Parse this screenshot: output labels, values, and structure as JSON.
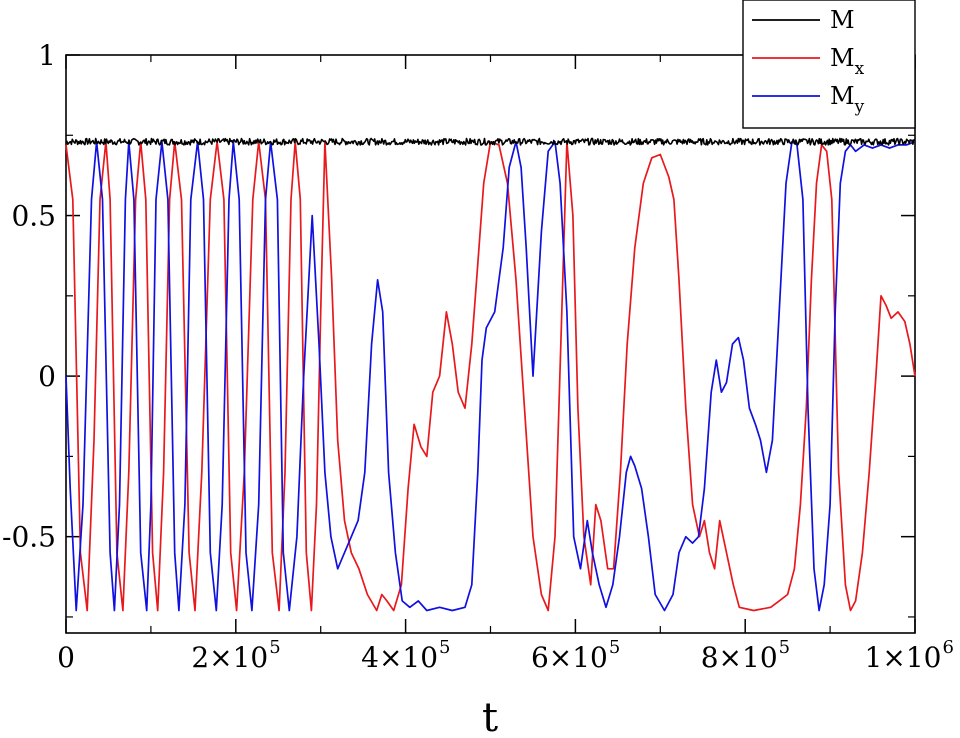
{
  "chart_data": {
    "type": "line",
    "title": "",
    "xlabel": "t",
    "ylabel": "",
    "xlim": [
      0,
      1000000
    ],
    "ylim": [
      -0.8,
      1.0
    ],
    "grid": false,
    "legend_placement": "top-right",
    "x_ticks": [
      {
        "value": 0,
        "label": "0"
      },
      {
        "value": 200000,
        "label": "2×10",
        "exp": "5"
      },
      {
        "value": 400000,
        "label": "4×10",
        "exp": "5"
      },
      {
        "value": 600000,
        "label": "6×10",
        "exp": "5"
      },
      {
        "value": 800000,
        "label": "8×10",
        "exp": "5"
      },
      {
        "value": 1000000,
        "label": "1×10",
        "exp": "6"
      }
    ],
    "y_ticks": [
      {
        "value": -0.5,
        "label": "-0.5"
      },
      {
        "value": 0,
        "label": "0"
      },
      {
        "value": 0.5,
        "label": "0.5"
      },
      {
        "value": 1,
        "label": "1"
      }
    ],
    "series": [
      {
        "name": "M",
        "sub": "",
        "color": "#000000",
        "noise": true,
        "points": [
          [
            0,
            0.73
          ],
          [
            1000000,
            0.73
          ]
        ]
      },
      {
        "name": "M",
        "sub": "x",
        "color": "#e8191d",
        "noise": false,
        "points": [
          [
            0,
            0.72
          ],
          [
            8000,
            0.55
          ],
          [
            17000,
            -0.55
          ],
          [
            25000,
            -0.73
          ],
          [
            33000,
            -0.2
          ],
          [
            40000,
            0.55
          ],
          [
            47000,
            0.73
          ],
          [
            52000,
            0.55
          ],
          [
            60000,
            -0.55
          ],
          [
            67000,
            -0.73
          ],
          [
            74000,
            -0.3
          ],
          [
            82000,
            0.55
          ],
          [
            88000,
            0.73
          ],
          [
            94000,
            0.55
          ],
          [
            102000,
            -0.55
          ],
          [
            108000,
            -0.73
          ],
          [
            115000,
            -0.3
          ],
          [
            122000,
            0.55
          ],
          [
            128000,
            0.73
          ],
          [
            136000,
            0.55
          ],
          [
            145000,
            -0.55
          ],
          [
            152000,
            -0.73
          ],
          [
            160000,
            -0.3
          ],
          [
            170000,
            0.55
          ],
          [
            178000,
            0.73
          ],
          [
            186000,
            0.55
          ],
          [
            194000,
            -0.55
          ],
          [
            201000,
            -0.73
          ],
          [
            210000,
            -0.3
          ],
          [
            220000,
            0.55
          ],
          [
            227000,
            0.73
          ],
          [
            235000,
            0.55
          ],
          [
            243000,
            -0.55
          ],
          [
            251000,
            -0.73
          ],
          [
            258000,
            -0.3
          ],
          [
            265000,
            0.55
          ],
          [
            270000,
            0.73
          ],
          [
            276000,
            0.55
          ],
          [
            283000,
            -0.55
          ],
          [
            289000,
            -0.73
          ],
          [
            295000,
            -0.4
          ],
          [
            300000,
            0.2
          ],
          [
            305000,
            0.73
          ],
          [
            313000,
            0.3
          ],
          [
            320000,
            -0.2
          ],
          [
            328000,
            -0.45
          ],
          [
            336000,
            -0.55
          ],
          [
            345000,
            -0.6
          ],
          [
            355000,
            -0.68
          ],
          [
            366000,
            -0.73
          ],
          [
            372000,
            -0.68
          ],
          [
            378000,
            -0.7
          ],
          [
            386000,
            -0.73
          ],
          [
            395000,
            -0.65
          ],
          [
            403000,
            -0.35
          ],
          [
            410000,
            -0.15
          ],
          [
            418000,
            -0.22
          ],
          [
            425000,
            -0.25
          ],
          [
            432000,
            -0.05
          ],
          [
            440000,
            0.0
          ],
          [
            448000,
            0.2
          ],
          [
            455000,
            0.1
          ],
          [
            462000,
            -0.05
          ],
          [
            470000,
            -0.1
          ],
          [
            478000,
            0.1
          ],
          [
            485000,
            0.35
          ],
          [
            492000,
            0.6
          ],
          [
            500000,
            0.73
          ],
          [
            510000,
            0.72
          ],
          [
            520000,
            0.6
          ],
          [
            530000,
            0.3
          ],
          [
            540000,
            -0.1
          ],
          [
            550000,
            -0.5
          ],
          [
            560000,
            -0.68
          ],
          [
            568000,
            -0.73
          ],
          [
            576000,
            -0.5
          ],
          [
            584000,
            0.2
          ],
          [
            590000,
            0.73
          ],
          [
            597000,
            0.5
          ],
          [
            603000,
            -0.1
          ],
          [
            610000,
            -0.5
          ],
          [
            618000,
            -0.65
          ],
          [
            624000,
            -0.4
          ],
          [
            630000,
            -0.45
          ],
          [
            638000,
            -0.6
          ],
          [
            645000,
            -0.6
          ],
          [
            653000,
            -0.3
          ],
          [
            661000,
            0.1
          ],
          [
            670000,
            0.4
          ],
          [
            680000,
            0.6
          ],
          [
            690000,
            0.68
          ],
          [
            700000,
            0.69
          ],
          [
            710000,
            0.62
          ],
          [
            716000,
            0.55
          ],
          [
            722000,
            0.3
          ],
          [
            730000,
            -0.1
          ],
          [
            738000,
            -0.4
          ],
          [
            746000,
            -0.5
          ],
          [
            752000,
            -0.45
          ],
          [
            758000,
            -0.55
          ],
          [
            764000,
            -0.6
          ],
          [
            770000,
            -0.45
          ],
          [
            778000,
            -0.55
          ],
          [
            786000,
            -0.65
          ],
          [
            793000,
            -0.72
          ],
          [
            810000,
            -0.73
          ],
          [
            830000,
            -0.72
          ],
          [
            840000,
            -0.7
          ],
          [
            850000,
            -0.68
          ],
          [
            858000,
            -0.6
          ],
          [
            865000,
            -0.4
          ],
          [
            872000,
            -0.1
          ],
          [
            878000,
            0.3
          ],
          [
            884000,
            0.6
          ],
          [
            890000,
            0.72
          ],
          [
            896000,
            0.7
          ],
          [
            902000,
            0.55
          ],
          [
            910000,
            -0.3
          ],
          [
            918000,
            -0.65
          ],
          [
            924000,
            -0.73
          ],
          [
            930000,
            -0.7
          ],
          [
            938000,
            -0.55
          ],
          [
            946000,
            -0.3
          ],
          [
            954000,
            0.0
          ],
          [
            960000,
            0.25
          ],
          [
            966000,
            0.22
          ],
          [
            972000,
            0.18
          ],
          [
            980000,
            0.2
          ],
          [
            988000,
            0.17
          ],
          [
            994000,
            0.1
          ],
          [
            1000000,
            0.0
          ]
        ]
      },
      {
        "name": "M",
        "sub": "y",
        "color": "#1010e0",
        "noise": false,
        "points": [
          [
            0,
            0.0
          ],
          [
            5000,
            -0.35
          ],
          [
            12000,
            -0.73
          ],
          [
            20000,
            -0.4
          ],
          [
            30000,
            0.55
          ],
          [
            36000,
            0.73
          ],
          [
            43000,
            0.55
          ],
          [
            52000,
            -0.55
          ],
          [
            57000,
            -0.73
          ],
          [
            63000,
            -0.4
          ],
          [
            70000,
            0.55
          ],
          [
            74000,
            0.73
          ],
          [
            80000,
            0.55
          ],
          [
            88000,
            -0.55
          ],
          [
            95000,
            -0.73
          ],
          [
            100000,
            -0.4
          ],
          [
            106000,
            0.55
          ],
          [
            113000,
            0.73
          ],
          [
            120000,
            0.55
          ],
          [
            128000,
            -0.55
          ],
          [
            133000,
            -0.73
          ],
          [
            140000,
            -0.4
          ],
          [
            147000,
            0.55
          ],
          [
            155000,
            0.73
          ],
          [
            162000,
            0.55
          ],
          [
            170000,
            -0.55
          ],
          [
            177000,
            -0.73
          ],
          [
            184000,
            -0.4
          ],
          [
            192000,
            0.55
          ],
          [
            197000,
            0.73
          ],
          [
            204000,
            0.55
          ],
          [
            212000,
            -0.55
          ],
          [
            219000,
            -0.73
          ],
          [
            227000,
            -0.4
          ],
          [
            235000,
            0.55
          ],
          [
            241000,
            0.73
          ],
          [
            249000,
            0.55
          ],
          [
            256000,
            -0.55
          ],
          [
            263000,
            -0.73
          ],
          [
            272000,
            -0.5
          ],
          [
            280000,
            0.0
          ],
          [
            290000,
            0.5
          ],
          [
            298000,
            0.1
          ],
          [
            305000,
            -0.3
          ],
          [
            312000,
            -0.5
          ],
          [
            320000,
            -0.6
          ],
          [
            328000,
            -0.55
          ],
          [
            336000,
            -0.5
          ],
          [
            344000,
            -0.45
          ],
          [
            352000,
            -0.3
          ],
          [
            360000,
            0.1
          ],
          [
            367000,
            0.3
          ],
          [
            373000,
            0.2
          ],
          [
            380000,
            -0.3
          ],
          [
            388000,
            -0.55
          ],
          [
            396000,
            -0.7
          ],
          [
            405000,
            -0.72
          ],
          [
            415000,
            -0.7
          ],
          [
            425000,
            -0.73
          ],
          [
            440000,
            -0.72
          ],
          [
            455000,
            -0.73
          ],
          [
            470000,
            -0.72
          ],
          [
            478000,
            -0.65
          ],
          [
            485000,
            -0.3
          ],
          [
            490000,
            0.05
          ],
          [
            495000,
            0.15
          ],
          [
            505000,
            0.2
          ],
          [
            515000,
            0.4
          ],
          [
            522000,
            0.65
          ],
          [
            530000,
            0.73
          ],
          [
            536000,
            0.65
          ],
          [
            542000,
            0.4
          ],
          [
            550000,
            0.0
          ],
          [
            560000,
            0.45
          ],
          [
            568000,
            0.7
          ],
          [
            576000,
            0.73
          ],
          [
            582000,
            0.6
          ],
          [
            590000,
            0.2
          ],
          [
            598000,
            -0.5
          ],
          [
            606000,
            -0.6
          ],
          [
            614000,
            -0.45
          ],
          [
            620000,
            -0.55
          ],
          [
            628000,
            -0.65
          ],
          [
            636000,
            -0.72
          ],
          [
            644000,
            -0.65
          ],
          [
            652000,
            -0.5
          ],
          [
            660000,
            -0.3
          ],
          [
            665000,
            -0.25
          ],
          [
            670000,
            -0.28
          ],
          [
            678000,
            -0.35
          ],
          [
            686000,
            -0.5
          ],
          [
            694000,
            -0.68
          ],
          [
            705000,
            -0.73
          ],
          [
            715000,
            -0.68
          ],
          [
            722000,
            -0.55
          ],
          [
            730000,
            -0.5
          ],
          [
            738000,
            -0.52
          ],
          [
            745000,
            -0.5
          ],
          [
            752000,
            -0.35
          ],
          [
            760000,
            -0.05
          ],
          [
            766000,
            0.05
          ],
          [
            772000,
            -0.05
          ],
          [
            778000,
            -0.02
          ],
          [
            785000,
            0.1
          ],
          [
            792000,
            0.12
          ],
          [
            798000,
            0.05
          ],
          [
            805000,
            -0.1
          ],
          [
            812000,
            -0.15
          ],
          [
            818000,
            -0.2
          ],
          [
            825000,
            -0.3
          ],
          [
            832000,
            -0.2
          ],
          [
            840000,
            0.2
          ],
          [
            848000,
            0.6
          ],
          [
            855000,
            0.73
          ],
          [
            861000,
            0.72
          ],
          [
            868000,
            0.55
          ],
          [
            874000,
            -0.1
          ],
          [
            881000,
            -0.6
          ],
          [
            887000,
            -0.73
          ],
          [
            893000,
            -0.65
          ],
          [
            900000,
            -0.4
          ],
          [
            906000,
            0.2
          ],
          [
            912000,
            0.6
          ],
          [
            918000,
            0.7
          ],
          [
            924000,
            0.72
          ],
          [
            930000,
            0.7
          ],
          [
            940000,
            0.72
          ],
          [
            950000,
            0.71
          ],
          [
            960000,
            0.72
          ],
          [
            970000,
            0.71
          ],
          [
            980000,
            0.72
          ],
          [
            990000,
            0.72
          ],
          [
            1000000,
            0.73
          ]
        ]
      }
    ]
  }
}
